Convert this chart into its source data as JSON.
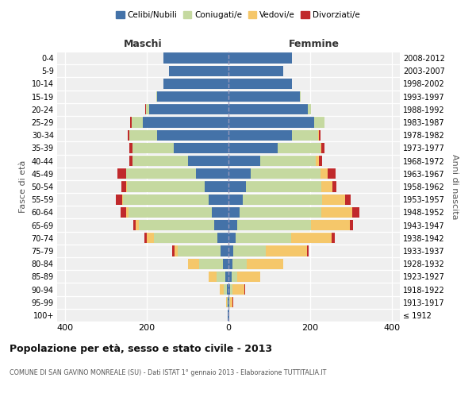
{
  "age_groups": [
    "100+",
    "95-99",
    "90-94",
    "85-89",
    "80-84",
    "75-79",
    "70-74",
    "65-69",
    "60-64",
    "55-59",
    "50-54",
    "45-49",
    "40-44",
    "35-39",
    "30-34",
    "25-29",
    "20-24",
    "15-19",
    "10-14",
    "5-9",
    "0-4"
  ],
  "birth_years": [
    "≤ 1912",
    "1913-1917",
    "1918-1922",
    "1923-1927",
    "1928-1932",
    "1933-1937",
    "1938-1942",
    "1943-1947",
    "1948-1952",
    "1953-1957",
    "1958-1962",
    "1963-1967",
    "1968-1972",
    "1973-1977",
    "1978-1982",
    "1983-1987",
    "1988-1992",
    "1993-1997",
    "1998-2002",
    "2003-2007",
    "2008-2012"
  ],
  "males": {
    "celibe": [
      2,
      2,
      4,
      7,
      14,
      20,
      28,
      35,
      40,
      48,
      58,
      80,
      100,
      135,
      175,
      210,
      195,
      175,
      160,
      145,
      160
    ],
    "coniugato": [
      0,
      2,
      8,
      22,
      58,
      105,
      155,
      185,
      205,
      210,
      190,
      170,
      135,
      100,
      68,
      28,
      8,
      2,
      0,
      0,
      0
    ],
    "vedovo": [
      0,
      2,
      10,
      20,
      28,
      8,
      18,
      8,
      5,
      3,
      2,
      0,
      0,
      0,
      0,
      0,
      0,
      0,
      0,
      0,
      0
    ],
    "divorziato": [
      0,
      0,
      0,
      0,
      0,
      5,
      5,
      5,
      15,
      15,
      12,
      22,
      8,
      8,
      3,
      3,
      2,
      0,
      0,
      0,
      0
    ]
  },
  "females": {
    "nubile": [
      2,
      2,
      4,
      7,
      10,
      12,
      18,
      22,
      28,
      35,
      42,
      55,
      78,
      120,
      155,
      210,
      195,
      175,
      155,
      135,
      155
    ],
    "coniugata": [
      0,
      2,
      5,
      15,
      35,
      80,
      135,
      180,
      200,
      195,
      185,
      170,
      135,
      105,
      65,
      25,
      8,
      2,
      0,
      0,
      0
    ],
    "vedova": [
      0,
      5,
      30,
      55,
      90,
      100,
      100,
      95,
      75,
      55,
      28,
      18,
      8,
      3,
      2,
      0,
      0,
      0,
      0,
      0,
      0
    ],
    "divorziata": [
      0,
      2,
      2,
      0,
      0,
      5,
      8,
      8,
      18,
      15,
      10,
      20,
      8,
      8,
      3,
      0,
      0,
      0,
      0,
      0,
      0
    ]
  },
  "colors": {
    "celibe": "#4472a8",
    "coniugato": "#c5d9a0",
    "vedovo": "#f5c76a",
    "divorziato": "#c0292b"
  },
  "legend_labels": [
    "Celibi/Nubili",
    "Coniugati/e",
    "Vedovi/e",
    "Divorziati/e"
  ],
  "title": "Popolazione per età, sesso e stato civile - 2013",
  "subtitle": "COMUNE DI SAN GAVINO MONREALE (SU) - Dati ISTAT 1° gennaio 2013 - Elaborazione TUTTITALIA.IT",
  "xlabel_left": "Maschi",
  "xlabel_right": "Femmine",
  "ylabel_left": "Fasce di età",
  "ylabel_right": "Anni di nascita",
  "xlim": 420,
  "bg_color": "#efefef"
}
